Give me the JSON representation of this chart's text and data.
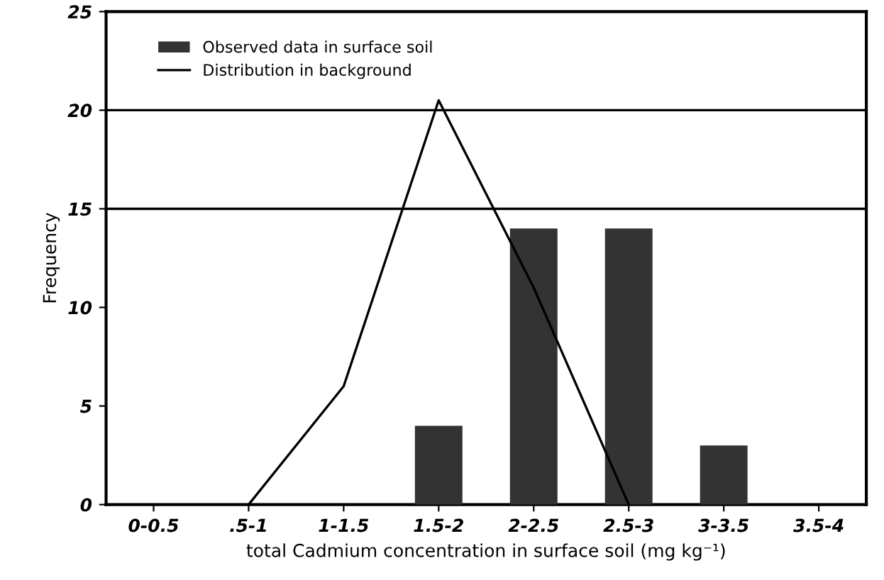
{
  "chart_data": {
    "type": "bar",
    "xlabel": "total Cadmium concentration in surface soil (mg kg⁻¹)",
    "ylabel": "Frequency",
    "categories": [
      "0-0.5",
      ".5-1",
      "1-1.5",
      "1.5-2",
      "2-2.5",
      "2.5-3",
      "3-3.5",
      "3.5-4"
    ],
    "series": [
      {
        "name": "Observed data in surface soil",
        "color": "#333333",
        "values": [
          0,
          0,
          0,
          4,
          14,
          14,
          3,
          0
        ]
      },
      {
        "name": "Distribution in background",
        "type": "line",
        "color": "#000000",
        "values": [
          null,
          0,
          6,
          20.5,
          11,
          0,
          null,
          null
        ]
      }
    ],
    "ylim": [
      0,
      25
    ],
    "yticks": [
      0,
      5,
      10,
      15,
      20,
      25
    ],
    "ref_lines": [
      {
        "axis": "y",
        "value": 15,
        "color": "#000000"
      },
      {
        "axis": "y",
        "value": 20,
        "color": "#000000"
      }
    ],
    "legend": "top left",
    "grid": false
  }
}
